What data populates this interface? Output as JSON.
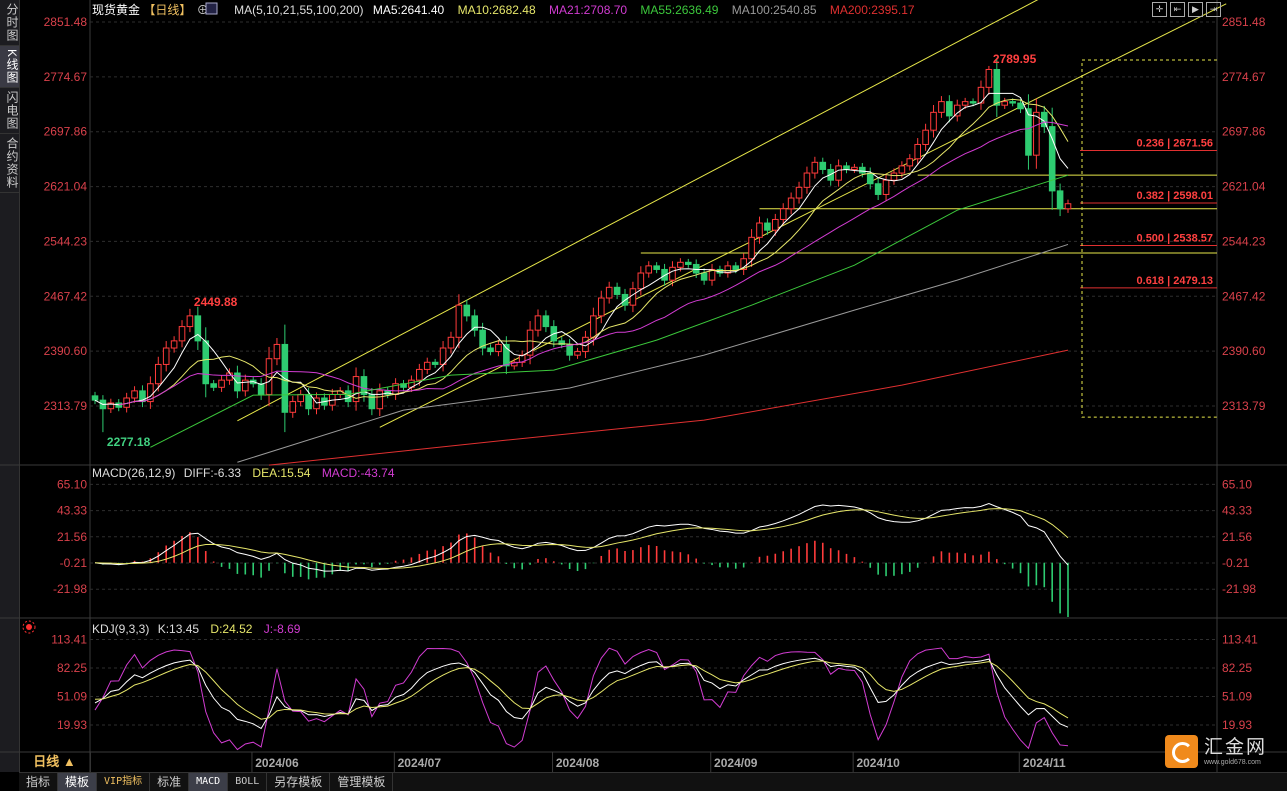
{
  "sidebar": {
    "tabs": [
      {
        "label": "分时图",
        "active": false
      },
      {
        "label": "K线图",
        "active": true
      },
      {
        "label": "闪电图",
        "active": false
      },
      {
        "label": "合约资料",
        "active": false
      }
    ]
  },
  "header": {
    "symbol": "现货黄金",
    "period_tag": "【日线】",
    "ma_label": "MA(5,10,21,55,100,200)",
    "ma5": "MA5:2641.40",
    "ma10": "MA10:2682.48",
    "ma21": "MA21:2708.70",
    "ma55": "MA55:2636.49",
    "ma100": "MA100:2540.85",
    "ma200": "MA200:2395.17"
  },
  "toolbar": {
    "icons": [
      "crosshair-icon",
      "zoom-in-icon",
      "play-icon",
      "exit-icon"
    ]
  },
  "colors": {
    "up": "#ff3b3b",
    "down": "#2ecc71",
    "ma5": "#ffffff",
    "ma10": "#e6e66a",
    "ma21": "#d23cd2",
    "ma55": "#3cc83c",
    "ma100": "#9a9a9a",
    "ma200": "#e03030",
    "axis_text": "#d9414b"
  },
  "chart_data": [
    {
      "type": "candlestick",
      "title": "现货黄金 日线",
      "y_ticks": [
        "2851.48",
        "2774.67",
        "2697.86",
        "2621.04",
        "2544.23",
        "2467.42",
        "2390.60",
        "2313.79"
      ],
      "ylim": [
        2234,
        2870
      ],
      "x_ticks": [
        {
          "label": "2024/06",
          "index": 23
        },
        {
          "label": "2024/07",
          "index": 41
        },
        {
          "label": "2024/08",
          "index": 61
        },
        {
          "label": "2024/09",
          "index": 81
        },
        {
          "label": "2024/10",
          "index": 99
        },
        {
          "label": "2024/11",
          "index": 120
        }
      ],
      "closes": [
        2322,
        2310,
        2318,
        2312,
        2325,
        2335,
        2320,
        2345,
        2372,
        2395,
        2405,
        2425,
        2440,
        2405,
        2345,
        2340,
        2350,
        2360,
        2335,
        2350,
        2345,
        2330,
        2380,
        2400,
        2305,
        2320,
        2330,
        2310,
        2325,
        2315,
        2330,
        2335,
        2320,
        2355,
        2330,
        2310,
        2335,
        2330,
        2345,
        2340,
        2350,
        2365,
        2375,
        2372,
        2395,
        2410,
        2455,
        2440,
        2420,
        2395,
        2390,
        2400,
        2370,
        2375,
        2385,
        2420,
        2440,
        2425,
        2405,
        2400,
        2385,
        2390,
        2410,
        2440,
        2465,
        2480,
        2470,
        2455,
        2478,
        2500,
        2510,
        2505,
        2490,
        2508,
        2515,
        2512,
        2500,
        2490,
        2505,
        2500,
        2510,
        2505,
        2520,
        2550,
        2570,
        2560,
        2575,
        2590,
        2605,
        2620,
        2640,
        2655,
        2645,
        2630,
        2650,
        2645,
        2648,
        2640,
        2625,
        2610,
        2630,
        2640,
        2650,
        2660,
        2680,
        2700,
        2725,
        2740,
        2720,
        2735,
        2740,
        2738,
        2760,
        2785,
        2735,
        2740,
        2738,
        2730,
        2665,
        2725,
        2705,
        2615,
        2590,
        2597
      ],
      "annotations": [
        {
          "label": "2449.88",
          "index": 12,
          "price": 2449.88,
          "kind": "high"
        },
        {
          "label": "2277.18",
          "index": 1,
          "price": 2277.18,
          "kind": "low"
        },
        {
          "label": "2789.95",
          "index": 113,
          "price": 2789.95,
          "kind": "high"
        }
      ],
      "ma_long": {
        "ma55": [
          [
            7,
            2256
          ],
          [
            20,
            2329
          ],
          [
            32,
            2330
          ],
          [
            45,
            2357
          ],
          [
            58,
            2364
          ],
          [
            71,
            2406
          ],
          [
            83,
            2455
          ],
          [
            96,
            2511
          ],
          [
            109,
            2588
          ],
          [
            119,
            2623
          ],
          [
            123,
            2637
          ]
        ],
        "ma100": [
          [
            18,
            2235
          ],
          [
            39,
            2308
          ],
          [
            60,
            2339
          ],
          [
            77,
            2385
          ],
          [
            96,
            2448
          ],
          [
            109,
            2490
          ],
          [
            123,
            2540
          ]
        ],
        "ma200": [
          [
            22,
            2231
          ],
          [
            52,
            2266
          ],
          [
            77,
            2294
          ],
          [
            102,
            2343
          ],
          [
            123,
            2392
          ]
        ]
      },
      "trendlines": [
        {
          "from": [
            18,
            2293
          ],
          "to": [
            123,
            2905
          ]
        },
        {
          "from": [
            36,
            2284
          ],
          "to": [
            143,
            2877
          ]
        }
      ],
      "horizontal_levels": [
        {
          "price": 2528,
          "from_index": 69
        },
        {
          "price": 2590,
          "from_index": 84
        },
        {
          "price": 2637,
          "from_index": 104
        }
      ],
      "fibonacci": [
        {
          "ratio": "0.236",
          "price": "2671.56",
          "label": "0.236 | 2671.56"
        },
        {
          "ratio": "0.382",
          "price": "2598.01",
          "label": "0.382 | 2598.01"
        },
        {
          "ratio": "0.500",
          "price": "2538.57",
          "label": "0.500 | 2538.57"
        },
        {
          "ratio": "0.618",
          "price": "2479.13",
          "label": "0.618 | 2479.13"
        }
      ],
      "fib_box": {
        "top": 2789.95,
        "bottom": 2277.18
      }
    },
    {
      "type": "macd",
      "legend": {
        "title": "MACD(26,12,9)",
        "diff": "DIFF:-6.33",
        "dea": "DEA:15.54",
        "macd": "MACD:-43.74"
      },
      "y_ticks": [
        "65.10",
        "43.33",
        "21.56",
        "-0.21",
        "-21.98"
      ]
    },
    {
      "type": "kdj",
      "legend": {
        "title": "KDJ(9,3,3)",
        "k": "K:13.45",
        "d": "D:24.52",
        "j": "J:-8.69"
      },
      "y_ticks": [
        "113.41",
        "82.25",
        "51.09",
        "19.93"
      ]
    }
  ],
  "footer": {
    "period": "日线 ▲",
    "tabs": [
      {
        "label": "指标"
      },
      {
        "label": "模板",
        "active": true
      },
      {
        "label": "VIP指标"
      },
      {
        "label": "标准"
      },
      {
        "label": "MACD",
        "active": true
      },
      {
        "label": "BOLL"
      },
      {
        "label": "另存模板"
      },
      {
        "label": "管理模板"
      }
    ]
  },
  "logo": {
    "name": "汇金网",
    "url": "www.gold678.com"
  }
}
